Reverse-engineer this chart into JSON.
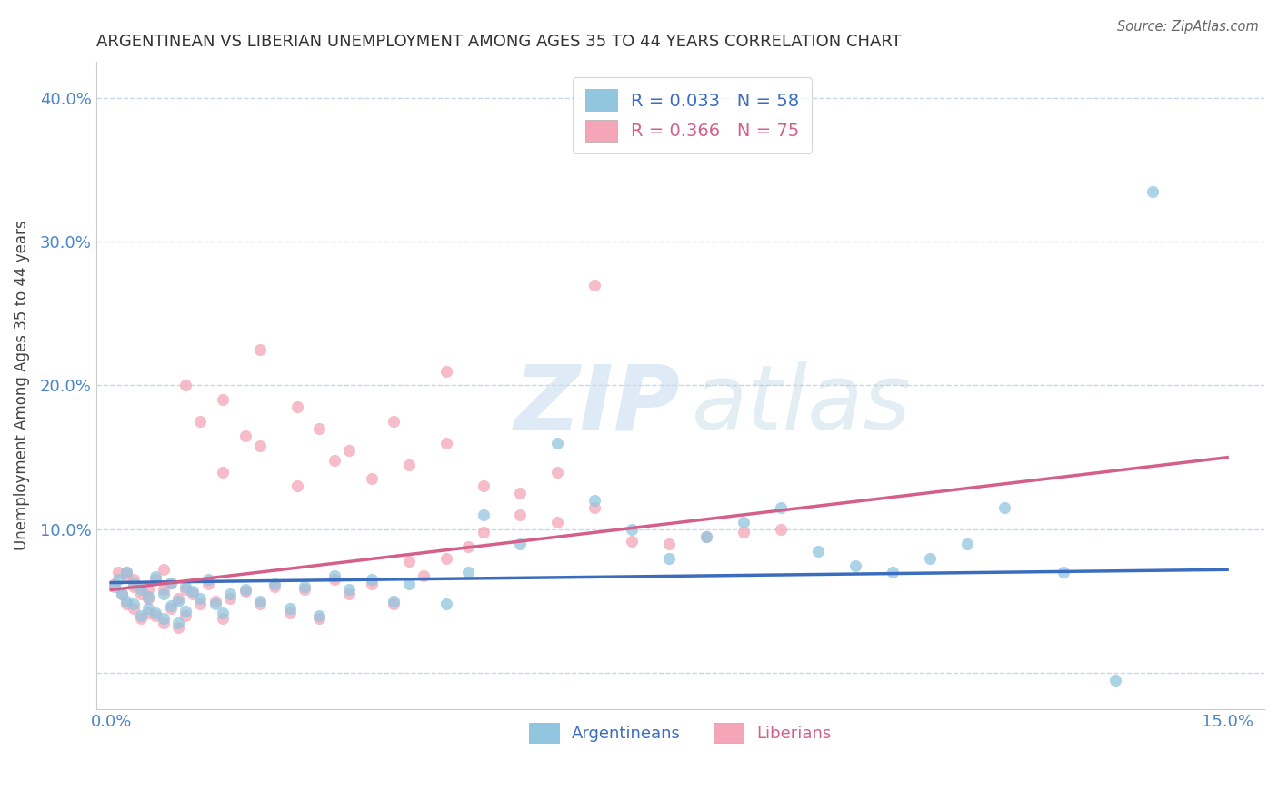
{
  "title": "ARGENTINEAN VS LIBERIAN UNEMPLOYMENT AMONG AGES 35 TO 44 YEARS CORRELATION CHART",
  "source": "Source: ZipAtlas.com",
  "ylabel": "Unemployment Among Ages 35 to 44 years",
  "xlim": [
    -0.002,
    0.155
  ],
  "ylim": [
    -0.025,
    0.425
  ],
  "x_ticks": [
    0.0,
    0.05,
    0.1,
    0.15
  ],
  "x_tick_labels": [
    "0.0%",
    "",
    "",
    "15.0%"
  ],
  "y_ticks": [
    0.0,
    0.1,
    0.2,
    0.3,
    0.4
  ],
  "y_tick_labels": [
    "",
    "10.0%",
    "20.0%",
    "30.0%",
    "40.0%"
  ],
  "blue_color": "#92c5de",
  "pink_color": "#f4a6b8",
  "blue_line_color": "#3b6dbf",
  "pink_line_color": "#d45f8a",
  "tick_color": "#4a86c8",
  "grid_color": "#c8d8e8",
  "background_color": "#ffffff",
  "blue_scatter_x": [
    0.0005,
    0.001,
    0.0015,
    0.002,
    0.002,
    0.003,
    0.003,
    0.004,
    0.004,
    0.005,
    0.005,
    0.006,
    0.006,
    0.007,
    0.007,
    0.008,
    0.008,
    0.009,
    0.009,
    0.01,
    0.01,
    0.011,
    0.012,
    0.013,
    0.014,
    0.015,
    0.016,
    0.018,
    0.02,
    0.022,
    0.024,
    0.026,
    0.028,
    0.03,
    0.032,
    0.035,
    0.038,
    0.04,
    0.045,
    0.048,
    0.05,
    0.055,
    0.06,
    0.065,
    0.07,
    0.075,
    0.08,
    0.085,
    0.09,
    0.095,
    0.1,
    0.105,
    0.11,
    0.115,
    0.12,
    0.128,
    0.135,
    0.14
  ],
  "blue_scatter_y": [
    0.06,
    0.065,
    0.055,
    0.07,
    0.05,
    0.062,
    0.048,
    0.058,
    0.04,
    0.053,
    0.045,
    0.067,
    0.042,
    0.055,
    0.038,
    0.063,
    0.047,
    0.05,
    0.035,
    0.06,
    0.043,
    0.057,
    0.052,
    0.065,
    0.048,
    0.042,
    0.055,
    0.058,
    0.05,
    0.062,
    0.045,
    0.06,
    0.04,
    0.068,
    0.058,
    0.065,
    0.05,
    0.062,
    0.048,
    0.07,
    0.11,
    0.09,
    0.16,
    0.12,
    0.1,
    0.08,
    0.095,
    0.105,
    0.115,
    0.085,
    0.075,
    0.07,
    0.08,
    0.09,
    0.115,
    0.07,
    -0.005,
    0.335
  ],
  "pink_scatter_x": [
    0.0005,
    0.001,
    0.0015,
    0.002,
    0.002,
    0.003,
    0.003,
    0.004,
    0.004,
    0.005,
    0.005,
    0.006,
    0.006,
    0.007,
    0.007,
    0.008,
    0.008,
    0.009,
    0.009,
    0.01,
    0.01,
    0.011,
    0.012,
    0.013,
    0.014,
    0.015,
    0.016,
    0.018,
    0.02,
    0.022,
    0.024,
    0.026,
    0.028,
    0.03,
    0.032,
    0.035,
    0.038,
    0.04,
    0.042,
    0.045,
    0.048,
    0.05,
    0.055,
    0.06,
    0.065,
    0.07,
    0.075,
    0.08,
    0.085,
    0.09,
    0.01,
    0.012,
    0.015,
    0.018,
    0.02,
    0.025,
    0.028,
    0.032,
    0.038,
    0.045,
    0.015,
    0.02,
    0.025,
    0.03,
    0.035,
    0.04,
    0.045,
    0.05,
    0.055,
    0.06,
    0.002,
    0.003,
    0.005,
    0.007,
    0.065
  ],
  "pink_scatter_y": [
    0.062,
    0.07,
    0.055,
    0.068,
    0.048,
    0.06,
    0.045,
    0.055,
    0.038,
    0.052,
    0.042,
    0.065,
    0.04,
    0.058,
    0.035,
    0.063,
    0.045,
    0.052,
    0.032,
    0.058,
    0.04,
    0.055,
    0.048,
    0.062,
    0.05,
    0.038,
    0.052,
    0.057,
    0.048,
    0.06,
    0.042,
    0.058,
    0.038,
    0.065,
    0.055,
    0.062,
    0.048,
    0.078,
    0.068,
    0.08,
    0.088,
    0.098,
    0.11,
    0.105,
    0.115,
    0.092,
    0.09,
    0.095,
    0.098,
    0.1,
    0.2,
    0.175,
    0.19,
    0.165,
    0.225,
    0.185,
    0.17,
    0.155,
    0.175,
    0.21,
    0.14,
    0.158,
    0.13,
    0.148,
    0.135,
    0.145,
    0.16,
    0.13,
    0.125,
    0.14,
    0.07,
    0.065,
    0.058,
    0.072,
    0.27
  ],
  "blue_line_x": [
    0.0,
    0.15
  ],
  "blue_line_y": [
    0.063,
    0.072
  ],
  "pink_line_x": [
    0.0,
    0.15
  ],
  "pink_line_y": [
    0.058,
    0.15
  ]
}
